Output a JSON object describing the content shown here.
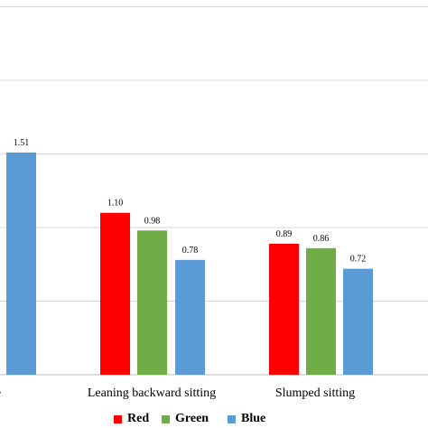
{
  "chart_data": {
    "type": "bar",
    "categories": [
      "e",
      "Leaning backward sitting",
      "Slumped sitting"
    ],
    "series": [
      {
        "name": "Red",
        "color": "#ff0000",
        "values": [
          null,
          1.1,
          0.89
        ],
        "labels": [
          "",
          "1.10",
          "0.89"
        ]
      },
      {
        "name": "Green",
        "color": "#70ad47",
        "values": [
          null,
          0.98,
          0.86
        ],
        "labels": [
          "",
          "0.98",
          "0.86"
        ]
      },
      {
        "name": "Blue",
        "color": "#5b9bd5",
        "values": [
          1.51,
          0.78,
          0.72
        ],
        "labels": [
          "1.51",
          "0.78",
          "0.72"
        ]
      }
    ],
    "ylim": [
      0,
      2.5
    ],
    "gridlines": [
      0.5,
      1.0,
      1.5,
      2.0,
      2.5
    ],
    "grid": true,
    "legend_position": "bottom",
    "gridline_color": "#d9d9d9",
    "axis_color": "#bfbfbf"
  }
}
